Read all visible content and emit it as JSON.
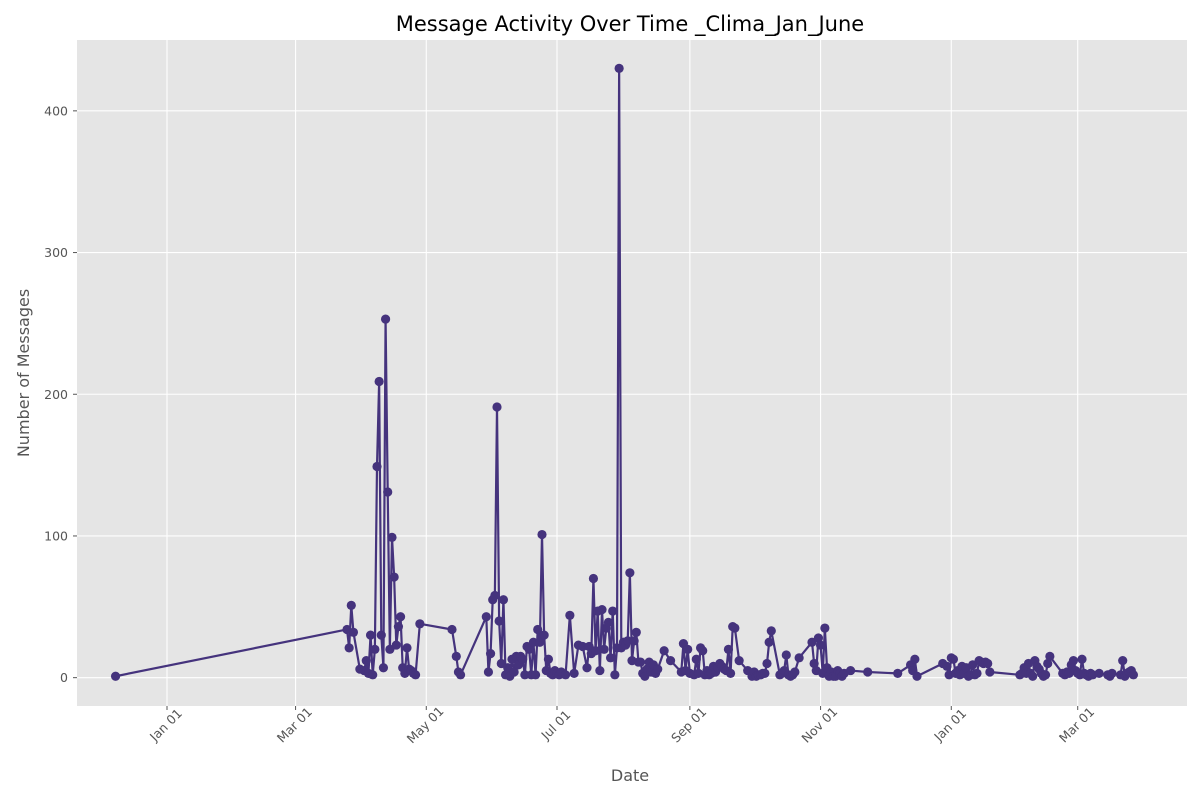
{
  "chart_data": {
    "type": "line",
    "title": "Message Activity Over Time _Clima_Jan_June",
    "xlabel": "Date",
    "ylabel": "Number of Messages",
    "xlim": [
      "2023-11-20",
      "2025-04-21"
    ],
    "ylim": [
      -20,
      450
    ],
    "x_ticks": [
      {
        "date": "2024-01-01",
        "label": "Jan 01"
      },
      {
        "date": "2024-03-01",
        "label": "Mar 01"
      },
      {
        "date": "2024-05-01",
        "label": "May 01"
      },
      {
        "date": "2024-07-01",
        "label": "Jul 01"
      },
      {
        "date": "2024-09-01",
        "label": "Sep 01"
      },
      {
        "date": "2024-11-01",
        "label": "Nov 01"
      },
      {
        "date": "2025-01-01",
        "label": "Jan 01"
      },
      {
        "date": "2025-03-01",
        "label": "Mar 01"
      }
    ],
    "y_ticks": [
      0,
      100,
      200,
      300,
      400
    ],
    "grid": true,
    "line_color": "#45337d",
    "background_color": "#e5e5e5",
    "series": [
      {
        "x": [
          "2023-12-08",
          "2024-03-25",
          "2024-03-26",
          "2024-03-27",
          "2024-03-28",
          "2024-03-31",
          "2024-04-02",
          "2024-04-03",
          "2024-04-04",
          "2024-04-05",
          "2024-04-06",
          "2024-04-07",
          "2024-04-08",
          "2024-04-09",
          "2024-04-10",
          "2024-04-11",
          "2024-04-12",
          "2024-04-13",
          "2024-04-14",
          "2024-04-15",
          "2024-04-16",
          "2024-04-17",
          "2024-04-18",
          "2024-04-19",
          "2024-04-20",
          "2024-04-21",
          "2024-04-22",
          "2024-04-23",
          "2024-04-24",
          "2024-04-25",
          "2024-04-26",
          "2024-04-28",
          "2024-05-13",
          "2024-05-15",
          "2024-05-16",
          "2024-05-17",
          "2024-05-29",
          "2024-05-30",
          "2024-05-31",
          "2024-06-01",
          "2024-06-02",
          "2024-06-03",
          "2024-06-04",
          "2024-06-05",
          "2024-06-06",
          "2024-06-07",
          "2024-06-08",
          "2024-06-09",
          "2024-06-10",
          "2024-06-11",
          "2024-06-12",
          "2024-06-13",
          "2024-06-14",
          "2024-06-15",
          "2024-06-16",
          "2024-06-17",
          "2024-06-18",
          "2024-06-19",
          "2024-06-20",
          "2024-06-21",
          "2024-06-22",
          "2024-06-23",
          "2024-06-24",
          "2024-06-25",
          "2024-06-26",
          "2024-06-27",
          "2024-06-28",
          "2024-06-29",
          "2024-06-30",
          "2024-07-01",
          "2024-07-02",
          "2024-07-03",
          "2024-07-05",
          "2024-07-07",
          "2024-07-09",
          "2024-07-11",
          "2024-07-13",
          "2024-07-15",
          "2024-07-16",
          "2024-07-17",
          "2024-07-18",
          "2024-07-19",
          "2024-07-20",
          "2024-07-21",
          "2024-07-22",
          "2024-07-23",
          "2024-07-24",
          "2024-07-25",
          "2024-07-26",
          "2024-07-27",
          "2024-07-28",
          "2024-07-29",
          "2024-07-30",
          "2024-07-31",
          "2024-08-01",
          "2024-08-02",
          "2024-08-03",
          "2024-08-04",
          "2024-08-05",
          "2024-08-06",
          "2024-08-07",
          "2024-08-08",
          "2024-08-09",
          "2024-08-10",
          "2024-08-11",
          "2024-08-12",
          "2024-08-13",
          "2024-08-14",
          "2024-08-15",
          "2024-08-16",
          "2024-08-17",
          "2024-08-20",
          "2024-08-23",
          "2024-08-28",
          "2024-08-29",
          "2024-08-30",
          "2024-08-31",
          "2024-09-01",
          "2024-09-03",
          "2024-09-04",
          "2024-09-05",
          "2024-09-06",
          "2024-09-07",
          "2024-09-08",
          "2024-09-09",
          "2024-09-10",
          "2024-09-11",
          "2024-09-12",
          "2024-09-13",
          "2024-09-14",
          "2024-09-15",
          "2024-09-16",
          "2024-09-17",
          "2024-09-18",
          "2024-09-19",
          "2024-09-20",
          "2024-09-21",
          "2024-09-22",
          "2024-09-24",
          "2024-09-28",
          "2024-09-30",
          "2024-10-01",
          "2024-10-02",
          "2024-10-03",
          "2024-10-04",
          "2024-10-05",
          "2024-10-06",
          "2024-10-07",
          "2024-10-08",
          "2024-10-09",
          "2024-10-13",
          "2024-10-14",
          "2024-10-15",
          "2024-10-16",
          "2024-10-17",
          "2024-10-18",
          "2024-10-19",
          "2024-10-20",
          "2024-10-22",
          "2024-10-28",
          "2024-10-29",
          "2024-10-30",
          "2024-10-31",
          "2024-11-01",
          "2024-11-02",
          "2024-11-03",
          "2024-11-04",
          "2024-11-05",
          "2024-11-06",
          "2024-11-07",
          "2024-11-08",
          "2024-11-09",
          "2024-11-10",
          "2024-11-11",
          "2024-11-12",
          "2024-11-15",
          "2024-11-23",
          "2024-12-07",
          "2024-12-13",
          "2024-12-14",
          "2024-12-15",
          "2024-12-16",
          "2024-12-28",
          "2024-12-30",
          "2024-12-31",
          "2025-01-01",
          "2025-01-02",
          "2025-01-03",
          "2025-01-04",
          "2025-01-05",
          "2025-01-06",
          "2025-01-07",
          "2025-01-08",
          "2025-01-09",
          "2025-01-10",
          "2025-01-11",
          "2025-01-12",
          "2025-01-13",
          "2025-01-14",
          "2025-01-15",
          "2025-01-16",
          "2025-01-17",
          "2025-01-18",
          "2025-01-19",
          "2025-02-02",
          "2025-02-03",
          "2025-02-04",
          "2025-02-05",
          "2025-02-06",
          "2025-02-07",
          "2025-02-08",
          "2025-02-09",
          "2025-02-10",
          "2025-02-11",
          "2025-02-12",
          "2025-02-13",
          "2025-02-14",
          "2025-02-15",
          "2025-02-16",
          "2025-02-22",
          "2025-02-23",
          "2025-02-24",
          "2025-02-25",
          "2025-02-26",
          "2025-02-27",
          "2025-02-28",
          "2025-03-01",
          "2025-03-02",
          "2025-03-03",
          "2025-03-04",
          "2025-03-05",
          "2025-03-06",
          "2025-03-07",
          "2025-03-08",
          "2025-03-11",
          "2025-03-15",
          "2025-03-16",
          "2025-03-17",
          "2025-03-21",
          "2025-03-22",
          "2025-03-23",
          "2025-03-24",
          "2025-03-25",
          "2025-03-26",
          "2025-03-27"
        ],
        "values": [
          1,
          34,
          21,
          51,
          32,
          6,
          5,
          12,
          3,
          30,
          2,
          20,
          149,
          209,
          30,
          7,
          253,
          131,
          20,
          99,
          71,
          23,
          36,
          43,
          7,
          3,
          21,
          6,
          5,
          3,
          2,
          38,
          34,
          15,
          4,
          2,
          43,
          4,
          17,
          55,
          58,
          191,
          40,
          10,
          55,
          2,
          7,
          1,
          13,
          4,
          15,
          9,
          15,
          13,
          2,
          22,
          20,
          2,
          25,
          2,
          34,
          25,
          101,
          30,
          5,
          13,
          3,
          2,
          5,
          3,
          2,
          4,
          2,
          44,
          3,
          23,
          22,
          7,
          22,
          17,
          70,
          19,
          47,
          5,
          48,
          20,
          35,
          39,
          14,
          47,
          2,
          21,
          430,
          21,
          25,
          23,
          26,
          74,
          12,
          26,
          32,
          11,
          11,
          3,
          1,
          6,
          11,
          4,
          9,
          3,
          6,
          19,
          12,
          4,
          24,
          5,
          20,
          3,
          2,
          13,
          3,
          21,
          19,
          2,
          5,
          2,
          3,
          8,
          4,
          7,
          10,
          8,
          6,
          5,
          20,
          3,
          36,
          35,
          12,
          5,
          1,
          4,
          1,
          2,
          2,
          3,
          3,
          10,
          25,
          33,
          2,
          3,
          5,
          16,
          2,
          1,
          2,
          4,
          14,
          25,
          10,
          5,
          28,
          23,
          3,
          35,
          7,
          1,
          4,
          1,
          1,
          5,
          3,
          1,
          3,
          5,
          4,
          3,
          9,
          5,
          13,
          1,
          10,
          8,
          2,
          14,
          13,
          3,
          5,
          2,
          8,
          3,
          7,
          1,
          2,
          9,
          2,
          3,
          12,
          11,
          10,
          11,
          10,
          4,
          2,
          3,
          7,
          3,
          10,
          3,
          1,
          12,
          8,
          6,
          3,
          1,
          2,
          10,
          15,
          3,
          2,
          4,
          3,
          9,
          12,
          5,
          3,
          2,
          13,
          3,
          2,
          1,
          3,
          2,
          3,
          2,
          1,
          3,
          2,
          12,
          1,
          3,
          4,
          5,
          2
        ]
      }
    ]
  }
}
